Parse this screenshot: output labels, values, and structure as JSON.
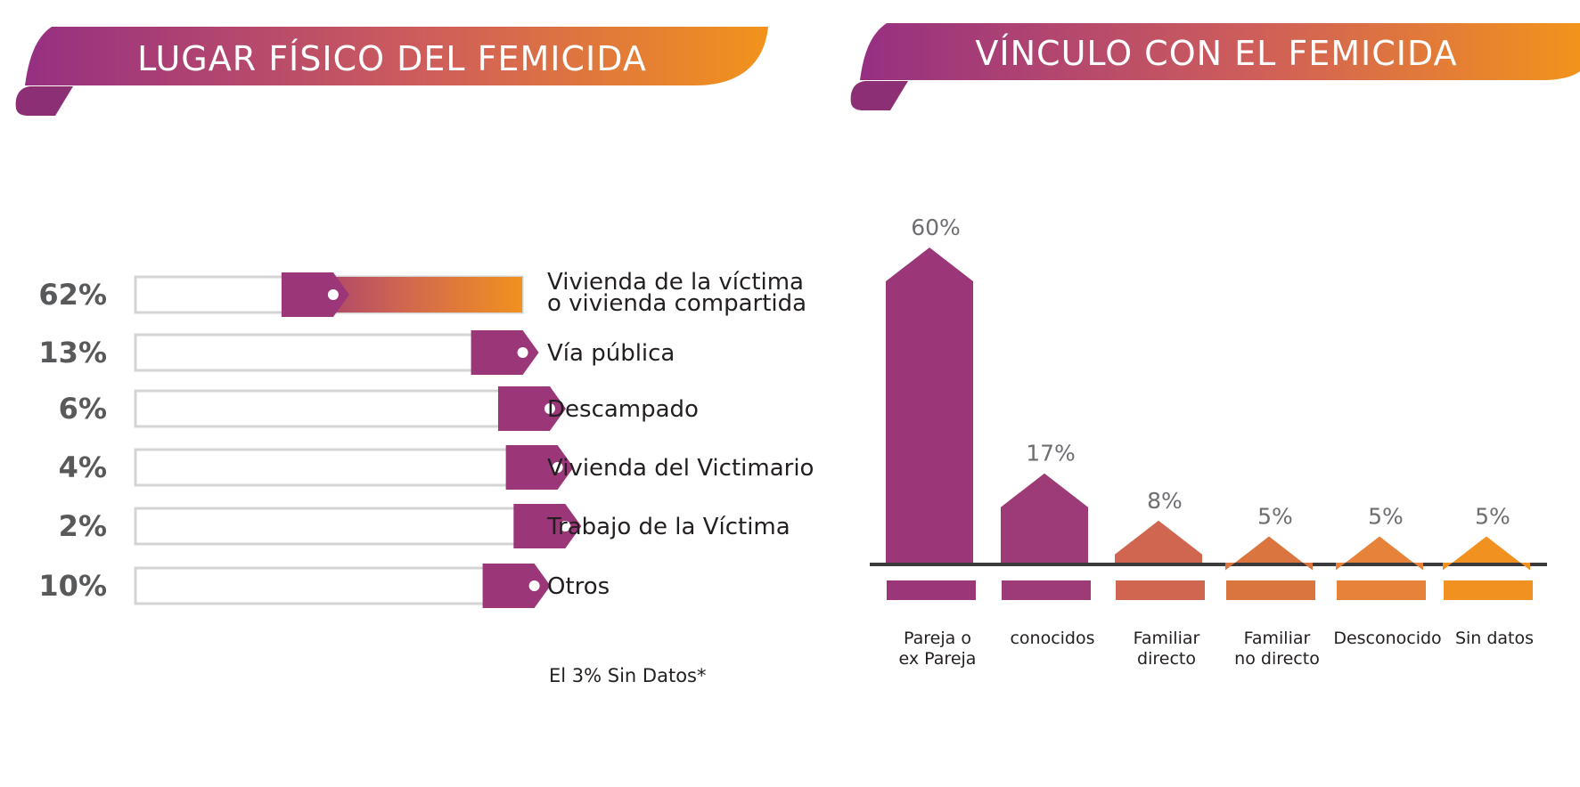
{
  "left_panel": {
    "title": "LUGAR FÍSICO DEL FEMICIDA",
    "footnote": "El 3% Sin Datos*"
  },
  "right_panel": {
    "title": "VÍNCULO CON EL FEMICIDA"
  },
  "colors": {
    "purple": "#9b3779",
    "orange": "#f1911f",
    "bar_outline": "#d4d4d4",
    "dark_text": "#58595b"
  },
  "chart_data": [
    {
      "type": "bar",
      "orientation": "horizontal",
      "title": "LUGAR FÍSICO DEL FEMICIDA",
      "unit": "%",
      "xlim": [
        0,
        100
      ],
      "categories": [
        [
          "Vivienda de la víctima",
          "o vivienda compartida"
        ],
        [
          "Vía pública"
        ],
        [
          "Descampado"
        ],
        [
          "Vivienda del Victimario"
        ],
        [
          "Trabajo de la Víctima"
        ],
        [
          "Otros"
        ]
      ],
      "values": [
        62,
        13,
        6,
        4,
        2,
        10
      ],
      "labels": [
        "62%",
        "13%",
        "6%",
        "4%",
        "2%",
        "10%"
      ],
      "annotations": [
        "El 3% Sin Datos*"
      ]
    },
    {
      "type": "bar",
      "orientation": "vertical",
      "title": "VÍNCULO CON EL FEMICIDA",
      "unit": "%",
      "ylim": [
        0,
        60
      ],
      "categories": [
        [
          "Pareja o",
          "ex Pareja"
        ],
        [
          "conocidos"
        ],
        [
          "Familiar",
          "directo"
        ],
        [
          "Familiar",
          "no directo"
        ],
        [
          "Desconocido"
        ],
        [
          "Sin datos"
        ]
      ],
      "values": [
        60,
        17,
        8,
        5,
        5,
        5
      ],
      "labels": [
        "60%",
        "17%",
        "8%",
        "5%",
        "5%",
        "5%"
      ],
      "bar_colors": [
        "#9b3779",
        "#9d3b76",
        "#d06650",
        "#db7540",
        "#e6823a",
        "#f1911f"
      ]
    }
  ]
}
